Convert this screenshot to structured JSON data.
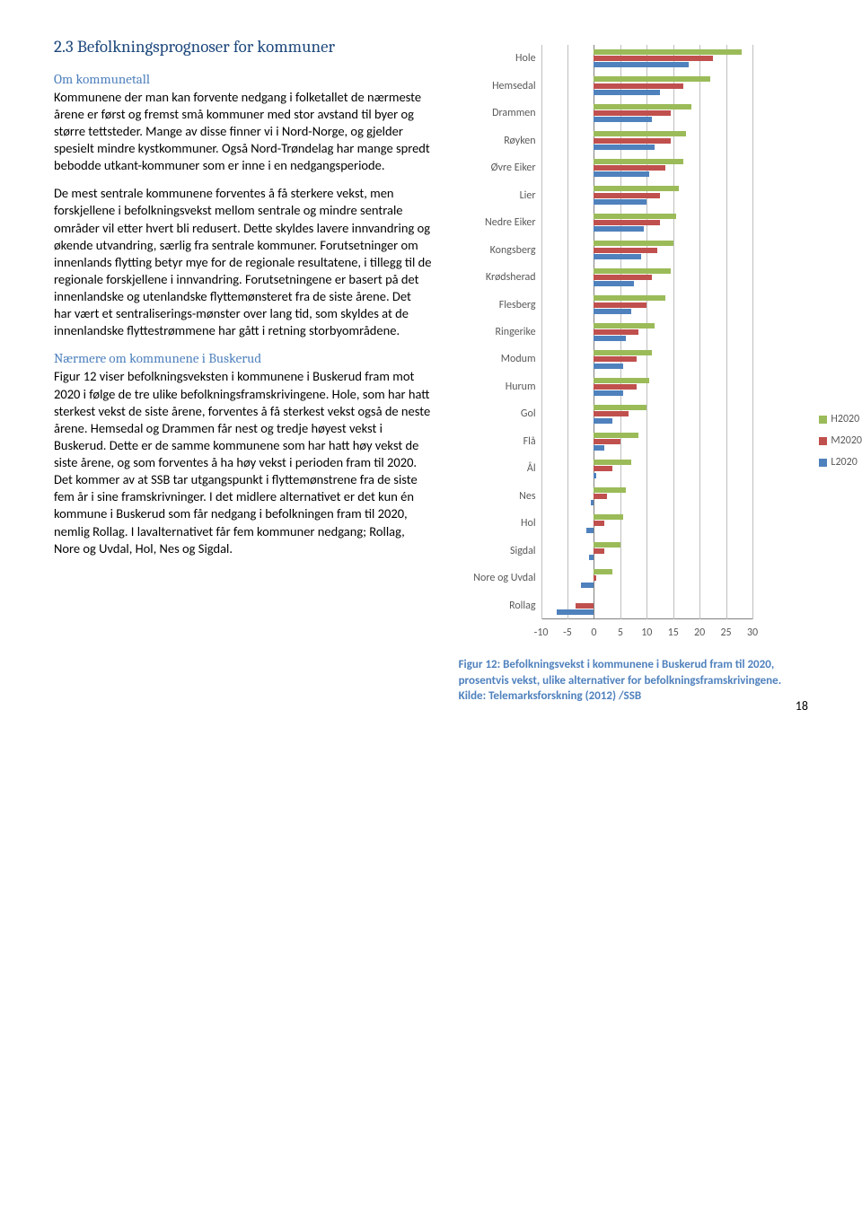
{
  "heading": "2.3 Befolkningsprognoser for kommuner",
  "subhead1": "Om kommunetall",
  "para1": "Kommunene der man kan forvente nedgang i folketallet de nærmeste årene er først og fremst små kommuner med stor avstand til byer og større tettsteder. Mange av disse finner vi i Nord-Norge, og gjelder spesielt mindre kystkommuner. Også Nord-Trøndelag har mange spredt bebodde utkant-kommuner som er inne i en nedgangsperiode.",
  "para2": "De mest sentrale kommunene forventes å få sterkere vekst, men forskjellene i befolkningsvekst mellom sentrale og mindre sentrale områder vil etter hvert bli redusert. Dette skyldes lavere innvandring og økende utvandring, særlig fra sentrale kommuner. Forutsetninger om innenlands flytting betyr mye for de regionale resultatene, i tillegg til de regionale forskjellene i innvandring. Forutsetningene er basert på det innenlandske og utenlandske flyttemønsteret fra de siste årene. Det har vært et sentraliserings-mønster over lang tid, som skyldes at de innenlandske flyttestrømmene har gått i retning storbyområdene.",
  "subhead2": "Nærmere om kommunene i Buskerud",
  "para3": "Figur 12  viser befolkningsveksten i kommunene i Buskerud fram mot 2020 i følge de tre ulike befolkningsframskrivingene. Hole, som har hatt sterkest vekst de siste årene, forventes å få sterkest vekst også de neste årene. Hemsedal og Drammen får nest og tredje høyest vekst i Buskerud. Dette er de samme kommunene som har hatt høy vekst de siste årene, og som  forventes å ha høy vekst i perioden fram til 2020. Det kommer av at SSB tar utgangspunkt i flyttemønstrene fra de siste fem år i sine framskrivninger. I det midlere alternativet er det kun én kommune i Buskerud som får nedgang i befolkningen fram til 2020, nemlig Rollag. I lavalternativet får fem kommuner nedgang; Rollag, Nore og Uvdal, Hol, Nes og Sigdal.",
  "caption": "Figur 12: Befolkningsvekst i kommunene i Buskerud fram til 2020, prosentvis vekst, ulike alternativer for befolkningsframskrivingene. Kilde: Telemarksforskning (2012) /SSB",
  "page_num": "18",
  "chart": {
    "xmin": -10,
    "xmax": 30,
    "ticks": [
      -10,
      -5,
      0,
      5,
      10,
      15,
      20,
      25,
      30
    ],
    "colors": {
      "H": "#9bbb59",
      "M": "#c0504d",
      "L": "#4f81bd",
      "grid": "#bfbfbf",
      "axis": "#808080"
    },
    "series_labels": {
      "H": "H2020",
      "M": "M2020",
      "L": "L2020"
    },
    "categories": [
      {
        "name": "Hole",
        "H": 28.0,
        "M": 22.5,
        "L": 18.0
      },
      {
        "name": "Hemsedal",
        "H": 22.0,
        "M": 17.0,
        "L": 12.5
      },
      {
        "name": "Drammen",
        "H": 18.5,
        "M": 14.5,
        "L": 11.0
      },
      {
        "name": "Røyken",
        "H": 17.5,
        "M": 14.5,
        "L": 11.5
      },
      {
        "name": "Øvre Eiker",
        "H": 17.0,
        "M": 13.5,
        "L": 10.5
      },
      {
        "name": "Lier",
        "H": 16.0,
        "M": 12.5,
        "L": 10.0
      },
      {
        "name": "Nedre Eiker",
        "H": 15.5,
        "M": 12.5,
        "L": 9.5
      },
      {
        "name": "Kongsberg",
        "H": 15.0,
        "M": 12.0,
        "L": 9.0
      },
      {
        "name": "Krødsherad",
        "H": 14.5,
        "M": 11.0,
        "L": 7.5
      },
      {
        "name": "Flesberg",
        "H": 13.5,
        "M": 10.0,
        "L": 7.0
      },
      {
        "name": "Ringerike",
        "H": 11.5,
        "M": 8.5,
        "L": 6.0
      },
      {
        "name": "Modum",
        "H": 11.0,
        "M": 8.0,
        "L": 5.5
      },
      {
        "name": "Hurum",
        "H": 10.5,
        "M": 8.0,
        "L": 5.5
      },
      {
        "name": "Gol",
        "H": 10.0,
        "M": 6.5,
        "L": 3.5
      },
      {
        "name": "Flå",
        "H": 8.5,
        "M": 5.0,
        "L": 2.0
      },
      {
        "name": "Ål",
        "H": 7.0,
        "M": 3.5,
        "L": 0.5
      },
      {
        "name": "Nes",
        "H": 6.0,
        "M": 2.5,
        "L": -0.5
      },
      {
        "name": "Hol",
        "H": 5.5,
        "M": 2.0,
        "L": -1.5
      },
      {
        "name": "Sigdal",
        "H": 5.0,
        "M": 2.0,
        "L": -1.0
      },
      {
        "name": "Nore og Uvdal",
        "H": 3.5,
        "M": 0.5,
        "L": -2.5
      },
      {
        "name": "Rollag",
        "H": 0.0,
        "M": -3.5,
        "L": -7.0
      }
    ]
  }
}
